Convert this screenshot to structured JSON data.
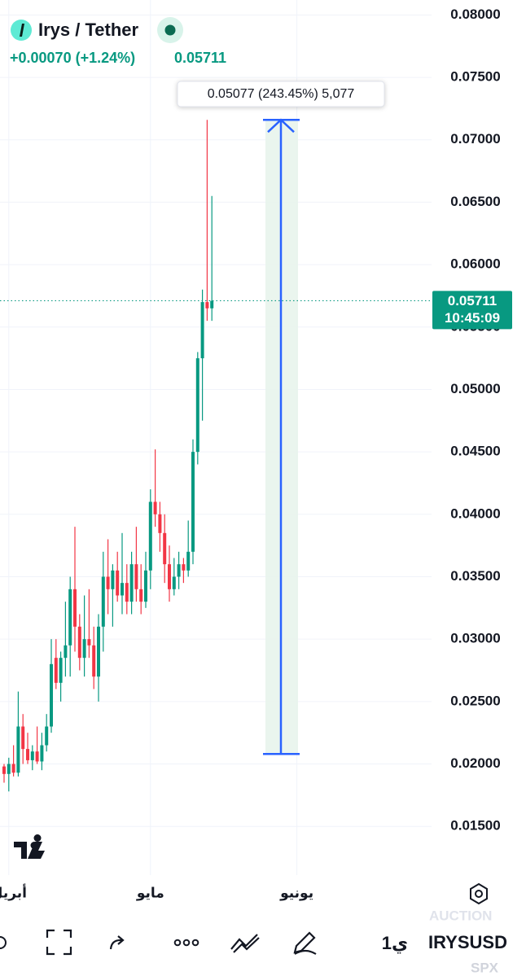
{
  "header": {
    "symbol": "Irys / Tether",
    "change": "+0.00070 (+1.24%)",
    "last": "0.05711"
  },
  "chart_data": {
    "type": "candlestick",
    "categories": [
      null,
      "أبريل",
      null,
      null,
      null,
      null,
      null,
      null,
      null,
      null,
      null,
      null,
      null,
      null,
      null,
      null,
      null,
      null,
      null,
      null,
      null,
      null,
      null,
      null,
      null,
      null,
      null,
      null,
      null,
      null,
      null,
      "مايو",
      null,
      null,
      null,
      null,
      null,
      null,
      null,
      null,
      null,
      null,
      null,
      null,
      null,
      null,
      null,
      null,
      null,
      null,
      null,
      null,
      null,
      null,
      null,
      null,
      null,
      null,
      null,
      null,
      null,
      null,
      "يونيو"
    ],
    "open": [
      0.0198,
      0.0192,
      0.02,
      0.0193,
      0.023,
      0.0212,
      0.0203,
      0.021,
      0.0202,
      0.0215,
      0.023,
      0.0285,
      0.0265,
      0.0285,
      0.0295,
      0.034,
      0.031,
      0.0285,
      0.03,
      0.0295,
      0.027,
      0.031,
      0.035,
      0.034,
      0.0355,
      0.0335,
      0.0345,
      0.033,
      0.036,
      0.034,
      0.033,
      0.0355,
      0.041,
      0.04,
      0.0385,
      0.036,
      0.034,
      0.035,
      0.036,
      0.0355,
      0.037,
      0.045,
      0.0525,
      0.057,
      0.0565,
      null,
      null,
      null,
      null,
      null,
      null,
      null,
      null,
      null,
      null,
      null,
      null,
      null,
      null,
      null,
      null,
      null,
      null
    ],
    "high": [
      0.02,
      0.0205,
      0.0215,
      0.0258,
      0.024,
      0.0225,
      0.0215,
      0.023,
      0.0225,
      0.024,
      0.03,
      0.03,
      0.029,
      0.033,
      0.035,
      0.039,
      0.032,
      0.0335,
      0.034,
      0.031,
      0.032,
      0.037,
      0.038,
      0.036,
      0.037,
      0.0385,
      0.036,
      0.037,
      0.039,
      0.036,
      0.037,
      0.042,
      0.0452,
      0.041,
      0.04,
      0.0375,
      0.0365,
      0.037,
      0.0365,
      0.0395,
      0.046,
      0.053,
      0.058,
      0.0716,
      0.0655,
      null,
      null,
      null,
      null,
      null,
      null,
      null,
      null,
      null,
      null,
      null,
      null,
      null,
      null,
      null,
      null,
      null,
      null
    ],
    "low": [
      0.0185,
      0.0178,
      0.019,
      0.019,
      0.02,
      0.02,
      0.0195,
      0.02,
      0.0195,
      0.021,
      0.0225,
      0.026,
      0.025,
      0.027,
      0.027,
      0.029,
      0.0275,
      0.027,
      0.0285,
      0.026,
      0.025,
      0.029,
      0.032,
      0.031,
      0.033,
      0.032,
      0.032,
      0.032,
      0.033,
      0.032,
      0.0325,
      0.034,
      0.039,
      0.037,
      0.0345,
      0.033,
      0.0335,
      0.034,
      0.0345,
      0.035,
      0.036,
      0.044,
      0.0475,
      0.0555,
      0.0555,
      null,
      null,
      null,
      null,
      null,
      null,
      null,
      null,
      null,
      null,
      null,
      null,
      null,
      null,
      null,
      null,
      null,
      null
    ],
    "close": [
      0.0192,
      0.02,
      0.0193,
      0.023,
      0.0212,
      0.0203,
      0.021,
      0.0202,
      0.0215,
      0.023,
      0.028,
      0.0265,
      0.0285,
      0.0295,
      0.034,
      0.031,
      0.0285,
      0.03,
      0.0295,
      0.027,
      0.031,
      0.035,
      0.034,
      0.0355,
      0.0335,
      0.0345,
      0.033,
      0.036,
      0.034,
      0.033,
      0.0355,
      0.041,
      0.04,
      0.0385,
      0.036,
      0.034,
      0.035,
      0.036,
      0.0355,
      0.037,
      0.045,
      0.0525,
      0.057,
      0.0565,
      0.0571,
      null,
      null,
      null,
      null,
      null,
      null,
      null,
      null,
      null,
      null,
      null,
      null,
      null,
      null,
      null,
      null,
      null,
      null
    ],
    "up_color": "#089981",
    "down_color": "#f23645",
    "ylim": [
      0.0111,
      0.0812
    ],
    "yticks": [
      {
        "value": 0.015,
        "label": "0.01500"
      },
      {
        "value": 0.02,
        "label": "0.02000"
      },
      {
        "value": 0.025,
        "label": "0.02500"
      },
      {
        "value": 0.03,
        "label": "0.03000"
      },
      {
        "value": 0.035,
        "label": "0.03500"
      },
      {
        "value": 0.04,
        "label": "0.04000"
      },
      {
        "value": 0.045,
        "label": "0.04500"
      },
      {
        "value": 0.05,
        "label": "0.05000"
      },
      {
        "value": 0.055,
        "label": "0.05500"
      },
      {
        "value": 0.06,
        "label": "0.06000"
      },
      {
        "value": 0.065,
        "label": "0.06500"
      },
      {
        "value": 0.07,
        "label": "0.07000"
      },
      {
        "value": 0.075,
        "label": "0.07500"
      },
      {
        "value": 0.08,
        "label": "0.08000"
      }
    ],
    "grid": true,
    "last_price": 0.05711,
    "countdown": "10:45:09",
    "measure": {
      "label": "0.05077 (243.45%) 5,077",
      "from": 0.0208,
      "to": 0.0716,
      "color": "#2962ff"
    }
  },
  "toolbar": {
    "interval": "1ي",
    "ticker": "IRYSUSD",
    "session": "AUCTION",
    "index": "SPX"
  }
}
